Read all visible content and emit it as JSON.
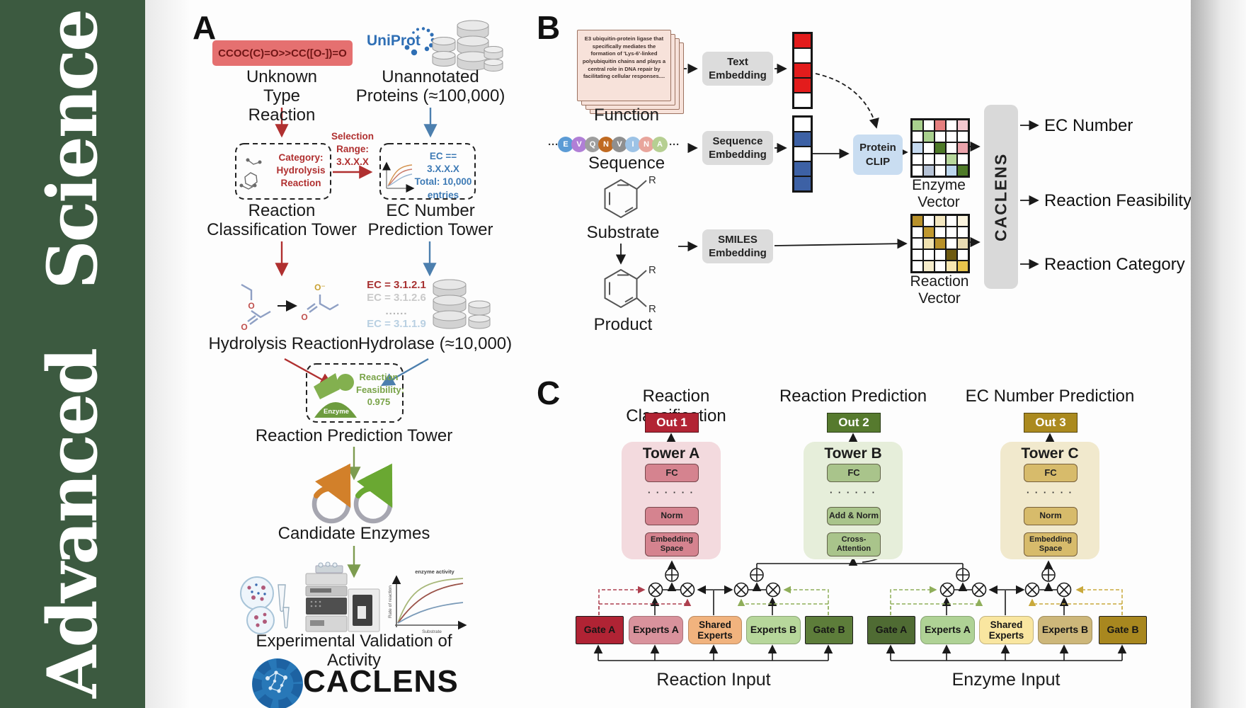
{
  "journal": {
    "name": "Advanced Science",
    "bg_color": "#3c5a40"
  },
  "panelA": {
    "label": "A",
    "smiles": "CCOC(C)=O>>CC([O-])=O",
    "uniprot": "UniProt",
    "unknown_line1": "Unknown Type",
    "unknown_line2": "Reaction",
    "unannotated_line1": "Unannotated",
    "unannotated_line2": "Proteins (≈100,000)",
    "category_line1": "Category:",
    "category_line2": "Hydrolysis",
    "category_line3": "Reaction",
    "selection_line1": "Selection",
    "selection_line2": "Range:",
    "selection_line3": "3.X.X.X",
    "ec_box_line1": "EC == 3.X.X.X",
    "ec_box_line2": "Total: 10,000",
    "ec_box_line3": "entries",
    "tower1_line1": "Reaction",
    "tower1_line2": "Classification Tower",
    "tower2_line1": "EC Number",
    "tower2_line2": "Prediction Tower",
    "hydrolysis": "Hydrolysis Reaction",
    "ec_list": [
      "EC = 3.1.2.1",
      "EC = 3.1.2.6",
      "......",
      "EC = 3.1.1.9"
    ],
    "hydrolase": "Hydrolase (≈10,000)",
    "enzyme_badge": "Enzyme",
    "feasibility_line1": "Reaction",
    "feasibility_line2": "Feasibility:",
    "feasibility_line3": "0.975",
    "prediction_tower": "Reaction Prediction Tower",
    "candidates": "Candidate Enzymes",
    "graph": {
      "title": "enzyme activity",
      "ylabel": "Rate of reaction",
      "xlabel": "Substrate"
    },
    "validation": "Experimental Validation of Activity",
    "logo_text": "CACLENS",
    "atom_o": "O",
    "atom_o_minus": "O⁻"
  },
  "panelB": {
    "label": "B",
    "function_card": "E3 ubiquitin-protein ligase that specifically mediates the formation of 'Lys-6'-linked polyubiquitin chains and plays a central role in DNA repair by facilitating cellular responses....",
    "function_label": "Function",
    "sequence_label": "Sequence",
    "sequence_prefix": "···",
    "sequence_suffix": "···",
    "sequence": [
      {
        "letter": "E",
        "color": "#5b9bd5"
      },
      {
        "letter": "V",
        "color": "#b07fd6"
      },
      {
        "letter": "Q",
        "color": "#9e9e9e"
      },
      {
        "letter": "N",
        "color": "#c06a21"
      },
      {
        "letter": "V",
        "color": "#8f8f8f"
      },
      {
        "letter": "I",
        "color": "#9dc3e6"
      },
      {
        "letter": "N",
        "color": "#e8a59c"
      },
      {
        "letter": "A",
        "color": "#b6cf92"
      }
    ],
    "substrate_label": "Substrate",
    "product_label": "Product",
    "r_group": "R",
    "text_embedding_l1": "Text",
    "text_embedding_l2": "Embedding",
    "sequence_embedding_l1": "Sequence",
    "sequence_embedding_l2": "Embedding",
    "smiles_embedding_l1": "SMILES",
    "smiles_embedding_l2": "Embedding",
    "protein_clip_l1": "Protein",
    "protein_clip_l2": "CLIP",
    "text_vector": [
      "#e31c1c",
      "#ffffff",
      "#e31c1c",
      "#e31c1c",
      "#ffffff"
    ],
    "seq_vector": [
      "#ffffff",
      "#3d61a5",
      "#ffffff",
      "#3d61a5",
      "#3d61a5"
    ],
    "enzyme_vector_label": "Enzyme Vector",
    "reaction_vector_label": "Reaction Vector",
    "enzyme_grid": [
      "#a9d08e",
      "#ffffff",
      "#e57f7f",
      "#ffffff",
      "#f4c7cf",
      "#ffffff",
      "#a9d08e",
      "#ffffff",
      "#ffffff",
      "#ffffff",
      "#c5d9f0",
      "#ffffff",
      "#4e7a28",
      "#ffffff",
      "#eba3ab",
      "#ffffff",
      "#ffffff",
      "#ffffff",
      "#b8d89c",
      "#ffffff",
      "#ffffff",
      "#b6c3d6",
      "#ffffff",
      "#bdd7ee",
      "#4e7a28"
    ],
    "reaction_grid": [
      "#b8912a",
      "#ffffff",
      "#f3e7c0",
      "#ffffff",
      "#fbf4df",
      "#ffffff",
      "#c0982e",
      "#ffffff",
      "#ffffff",
      "#ffffff",
      "#ffffff",
      "#f0e2b0",
      "#b8912a",
      "#ffffff",
      "#e9dcb2",
      "#ffffff",
      "#ffffff",
      "#ffffff",
      "#6e5a10",
      "#ffffff",
      "#ffffff",
      "#f5ecca",
      "#ffffff",
      "#f7e7b2",
      "#e7c44c"
    ],
    "caclens_bar": "CACLENS",
    "outputs": [
      "EC Number",
      "Reaction Feasibility",
      "Reaction Category"
    ]
  },
  "panelC": {
    "label": "C",
    "headings": [
      "Reaction Classification",
      "Reaction Prediction",
      "EC Number Prediction"
    ],
    "outs": [
      {
        "label": "Out 1",
        "color": "#b22434"
      },
      {
        "label": "Out 2",
        "color": "#567a2e"
      },
      {
        "label": "Out 3",
        "color": "#ab8a1f"
      }
    ],
    "towers": [
      {
        "name": "Tower A",
        "bg": "#f3dade",
        "box_color": "#d5838f",
        "fc": "FC",
        "dots": "· · · · · ·",
        "mid": "Norm",
        "bottom1": "Embedding",
        "bottom2": "Space"
      },
      {
        "name": "Tower B",
        "bg": "#e6eeda",
        "box_color": "#a9c48b",
        "fc": "FC",
        "dots": "· · · · · ·",
        "mid": "Add & Norm",
        "bottom1": "Cross-",
        "bottom2": "Attention"
      },
      {
        "name": "Tower C",
        "bg": "#f1e9cd",
        "box_color": "#d7bb6b",
        "fc": "FC",
        "dots": "· · · · · ·",
        "mid": "Norm",
        "bottom1": "Embedding",
        "bottom2": "Space"
      }
    ],
    "moe": {
      "reaction_group": {
        "input_label": "Reaction Input",
        "boxes": [
          {
            "label": "Gate A",
            "color": "#b02334"
          },
          {
            "label": "Experts A",
            "color": "#d9929c"
          },
          {
            "label": "Shared Experts",
            "color": "#f1b37e"
          },
          {
            "label": "Experts B",
            "color": "#b7d79b"
          },
          {
            "label": "Gate B",
            "color": "#5d7d3a"
          }
        ]
      },
      "enzyme_group": {
        "input_label": "Enzyme Input",
        "boxes": [
          {
            "label": "Gate A",
            "color": "#4f6b33"
          },
          {
            "label": "Experts A",
            "color": "#afd295"
          },
          {
            "label": "Shared Experts",
            "color": "#f9e6a0"
          },
          {
            "label": "Experts B",
            "color": "#cdb77a"
          },
          {
            "label": "Gate B",
            "color": "#a8871f"
          }
        ]
      }
    }
  }
}
